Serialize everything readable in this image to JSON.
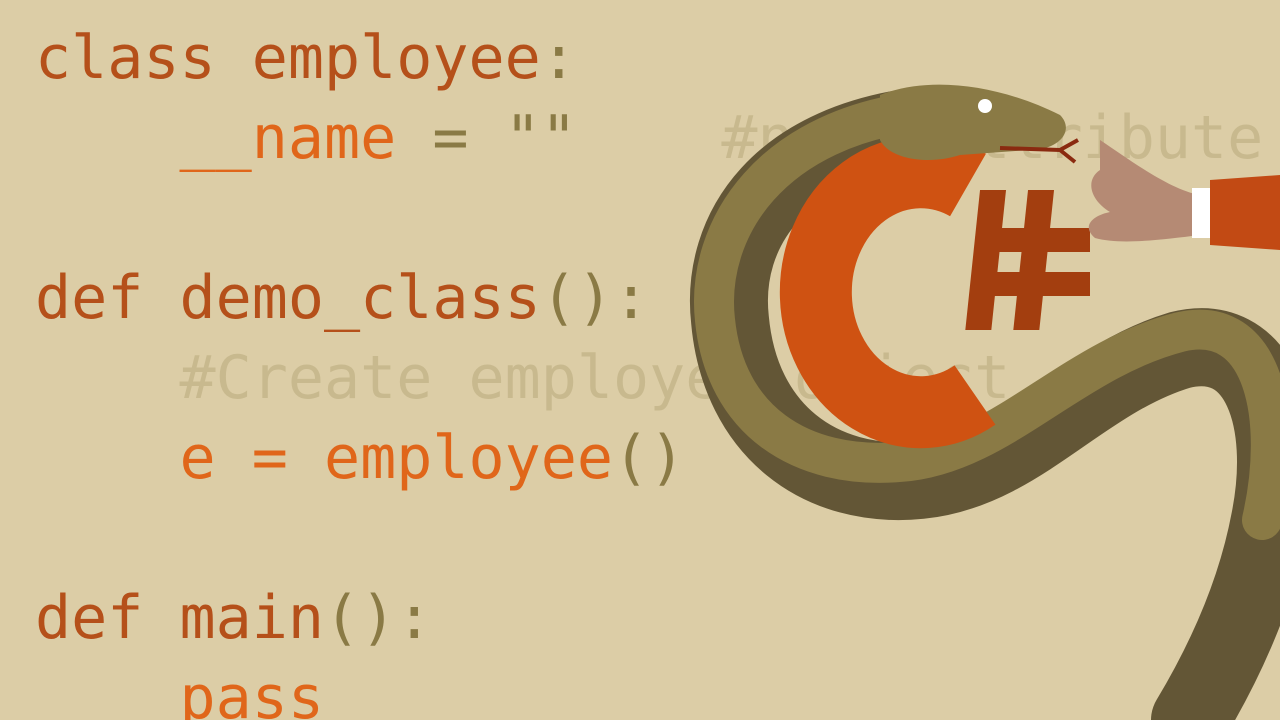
{
  "code_lines": [
    [
      {
        "text": "class employee",
        "color": "#b5501a"
      },
      {
        "text": ":",
        "color": "#8a7a45"
      }
    ],
    [
      {
        "text": "    __name",
        "color": "#e0661a"
      },
      {
        "text": " = \"\"",
        "color": "#8a7a45"
      },
      {
        "text": "    #name attribute",
        "color": "#c8b98e"
      }
    ],
    [],
    [
      {
        "text": "def demo_class",
        "color": "#b5501a"
      },
      {
        "text": "()",
        "color": "#8a7a45"
      },
      {
        "text": ":",
        "color": "#8a7a45"
      }
    ],
    [
      {
        "text": "    #Create employee object",
        "color": "#c8b98e"
      }
    ],
    [
      {
        "text": "    e = employee",
        "color": "#e0661a"
      },
      {
        "text": "()",
        "color": "#8a7a45"
      }
    ],
    [],
    [
      {
        "text": "def main",
        "color": "#b5501a"
      },
      {
        "text": "()",
        "color": "#8a7a45"
      },
      {
        "text": ":",
        "color": "#8a7a45"
      }
    ],
    [
      {
        "text": "    pass",
        "color": "#e0661a"
      }
    ]
  ]
}
